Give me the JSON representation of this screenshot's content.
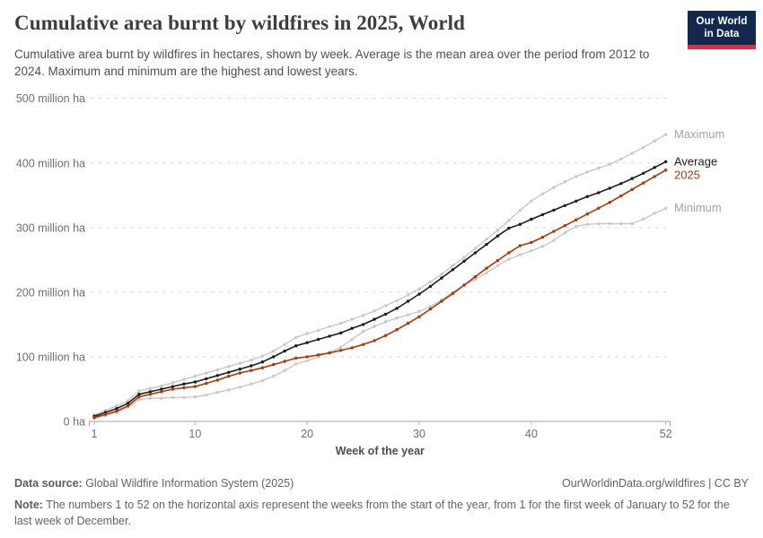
{
  "header": {
    "title": "Cumulative area burnt by wildfires in 2025, World",
    "subtitle": "Cumulative area burnt by wildfires in hectares, shown by week. Average is the mean area over the period from 2012 to 2024. Maximum and minimum are the highest and lowest years.",
    "logo": {
      "line1": "Our World",
      "line2": "in Data",
      "bg_color": "#12294d",
      "stripe_color": "#dc3045"
    }
  },
  "chart_data": {
    "type": "line",
    "title": "Cumulative area burnt by wildfires in 2025, World",
    "xlabel": "Week of the year",
    "ylabel": "",
    "unit": "million ha",
    "x_range": [
      1,
      52
    ],
    "x_ticks": [
      1,
      10,
      20,
      30,
      40,
      52
    ],
    "ylim": [
      0,
      500
    ],
    "grid": "dashed-horizontal",
    "legend_position": "line-end-labels",
    "y_ticks": [
      {
        "value": 0,
        "label": "0 ha"
      },
      {
        "value": 100,
        "label": "100 million ha"
      },
      {
        "value": 200,
        "label": "200 million ha"
      },
      {
        "value": 300,
        "label": "300 million ha"
      },
      {
        "value": 400,
        "label": "400 million ha"
      },
      {
        "value": 500,
        "label": "500 million ha"
      }
    ],
    "series": [
      {
        "name": "Maximum",
        "color": "#c8c8c8",
        "label_color": "#a3a3a3",
        "label_dy": 0,
        "values": [
          10,
          17,
          24,
          32,
          47,
          51,
          55,
          60,
          65,
          70,
          75,
          80,
          85,
          90,
          95,
          101,
          109,
          119,
          130,
          136,
          141,
          147,
          152,
          158,
          164,
          171,
          179,
          187,
          196,
          205,
          216,
          228,
          241,
          254,
          268,
          282,
          296,
          311,
          327,
          341,
          352,
          362,
          371,
          379,
          386,
          392,
          398,
          406,
          415,
          424,
          434,
          444
        ]
      },
      {
        "name": "Minimum",
        "color": "#c8c8c8",
        "label_color": "#a3a3a3",
        "label_dy": 0,
        "values": [
          5,
          9,
          14,
          22,
          34,
          36,
          36,
          37,
          37,
          38,
          41,
          45,
          49,
          53,
          58,
          63,
          70,
          79,
          89,
          94,
          100,
          107,
          115,
          127,
          139,
          147,
          154,
          160,
          165,
          170,
          178,
          188,
          200,
          211,
          220,
          230,
          241,
          251,
          258,
          264,
          271,
          280,
          292,
          302,
          305,
          306,
          306,
          306,
          306,
          313,
          322,
          330
        ]
      },
      {
        "name": "Average",
        "color": "#1d1d1d",
        "label_color": "#1a1a1a",
        "label_dy": 0,
        "values": [
          8,
          14,
          20,
          28,
          42,
          46,
          50,
          54,
          58,
          61,
          66,
          71,
          76,
          81,
          86,
          92,
          100,
          109,
          117,
          122,
          127,
          132,
          137,
          144,
          150,
          158,
          166,
          175,
          186,
          197,
          209,
          222,
          235,
          248,
          261,
          274,
          287,
          299,
          305,
          313,
          320,
          327,
          334,
          341,
          348,
          354,
          361,
          368,
          376,
          384,
          393,
          402
        ]
      },
      {
        "name": "2025",
        "color": "#b13507",
        "label_color": "#b13507",
        "label_dy": 6,
        "values": [
          6,
          11,
          16,
          24,
          38,
          42,
          46,
          50,
          52,
          54,
          59,
          64,
          70,
          75,
          79,
          83,
          88,
          93,
          98,
          100,
          103,
          106,
          110,
          114,
          119,
          125,
          133,
          142,
          152,
          162,
          174,
          186,
          198,
          211,
          224,
          237,
          249,
          261,
          272,
          277,
          285,
          294,
          303,
          312,
          321,
          330,
          339,
          349,
          359,
          369,
          379,
          389
        ]
      }
    ]
  },
  "footer": {
    "data_source_label": "Data source:",
    "data_source_text": " Global Wildfire Information System (2025)",
    "link_text": "OurWorldinData.org/wildfires | CC BY",
    "note_label": "Note:",
    "note_text": " The numbers 1 to 52 on the horizontal axis represent the weeks from the start of the year, from 1 for the first week of January to 52 for the last week of December."
  }
}
